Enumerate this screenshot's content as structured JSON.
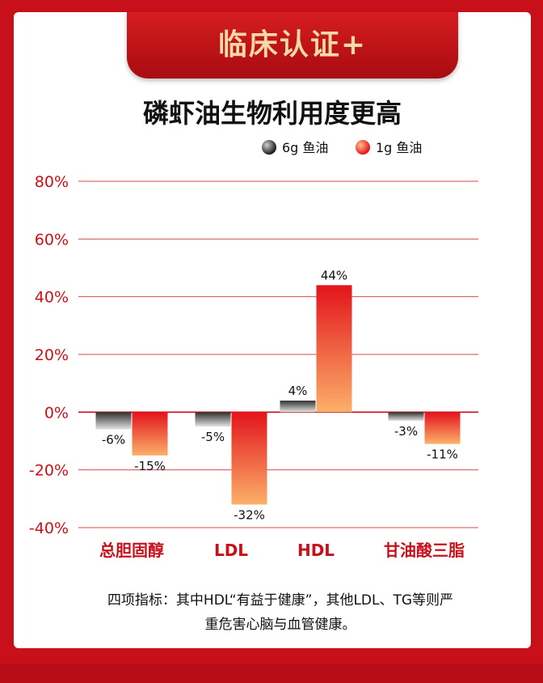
{
  "banner": {
    "text": "临床认证+"
  },
  "chart_data": {
    "type": "bar",
    "title": "磷虾油生物利用度更高",
    "categories": [
      "总胆固醇",
      "LDL",
      "HDL",
      "甘油酸三脂"
    ],
    "series": [
      {
        "name": "6g 鱼油",
        "values": [
          -6,
          -5,
          4,
          -3
        ],
        "labels": [
          "-6%",
          "-5%",
          "4%",
          "-3%"
        ],
        "color": "#3a3a3a"
      },
      {
        "name": "1g 鱼油",
        "values": [
          -15,
          -32,
          44,
          -11
        ],
        "labels": [
          "-15%",
          "-32%",
          "44%",
          "-11%"
        ],
        "color": "#e8301c"
      }
    ],
    "ylim": [
      -40,
      80
    ],
    "yticks": [
      80,
      60,
      40,
      20,
      0,
      -20,
      -40
    ],
    "ytick_labels": [
      "80%",
      "60%",
      "40%",
      "20%",
      "0%",
      "-20%",
      "-40%"
    ],
    "legend_position": "top-right",
    "grid": true,
    "colors": {
      "axis_text": "#c8101a",
      "grid": "#c8101a"
    }
  },
  "footnote": {
    "line1": "四项指标：其中HDL“有益于健康”，其他LDL、TG等则严",
    "line2": "重危害心脑与血管健康。"
  }
}
